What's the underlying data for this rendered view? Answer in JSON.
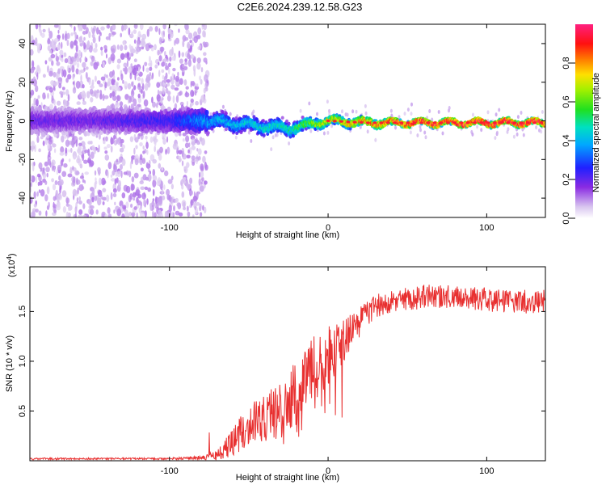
{
  "title": "C2E6.2024.239.12.58.G23",
  "chart_data": [
    {
      "type": "heatmap",
      "title": "C2E6.2024.239.12.58.G23",
      "xlabel": "Height of straight line (km)",
      "ylabel": "Frequency (Hz)",
      "xlim": [
        -188,
        137
      ],
      "ylim": [
        -50,
        50
      ],
      "x_ticks": [
        -100,
        0,
        100
      ],
      "y_ticks": [
        -40,
        -20,
        0,
        20,
        40
      ],
      "colorbar": {
        "label": "Normalized spectral amplitude",
        "range": [
          0.0,
          1.0
        ],
        "ticks": [
          "0.0",
          "0.2",
          "0.4",
          "0.6",
          "0.8"
        ],
        "colormap": "rainbow (violet-blue-cyan-green-yellow-red-magenta)"
      },
      "description_points": {
        "x": [
          -188,
          -150,
          -100,
          -75,
          -50,
          -25,
          0,
          25,
          50,
          100,
          137
        ],
        "center_frequency": [
          0,
          0,
          0,
          0,
          -2,
          -4,
          0,
          -1,
          -1,
          -1,
          -1
        ],
        "spread_hz": [
          50,
          50,
          50,
          6,
          5,
          5,
          3,
          3,
          2,
          2,
          2
        ],
        "peak_amplitude": [
          0.2,
          0.2,
          0.25,
          0.4,
          0.45,
          0.5,
          0.75,
          0.85,
          0.95,
          1.0,
          1.0
        ]
      }
    },
    {
      "type": "line",
      "xlabel": "Height of straight line (km)",
      "ylabel": "SNR (10 * v/v)",
      "y_exponent": "(x10^4)",
      "xlim": [
        -188,
        137
      ],
      "ylim": [
        0,
        1.95
      ],
      "x_ticks": [
        -100,
        0,
        100
      ],
      "y_ticks": [
        0.5,
        1.0,
        1.5
      ],
      "color": "#e83030",
      "series": [
        {
          "x": [
            -188,
            -150,
            -100,
            -80,
            -70,
            -60,
            -50,
            -40,
            -30,
            -20,
            -10,
            0,
            10,
            20,
            30,
            40,
            60,
            80,
            100,
            120,
            137
          ],
          "values": [
            0.02,
            0.02,
            0.02,
            0.03,
            0.05,
            0.2,
            0.35,
            0.45,
            0.5,
            0.7,
            0.9,
            1.05,
            1.2,
            1.4,
            1.55,
            1.6,
            1.65,
            1.65,
            1.62,
            1.6,
            1.6
          ],
          "noise": [
            0.01,
            0.01,
            0.01,
            0.02,
            0.05,
            0.15,
            0.2,
            0.25,
            0.3,
            0.35,
            0.35,
            0.3,
            0.25,
            0.15,
            0.12,
            0.12,
            0.12,
            0.12,
            0.12,
            0.12,
            0.12
          ]
        }
      ]
    }
  ]
}
